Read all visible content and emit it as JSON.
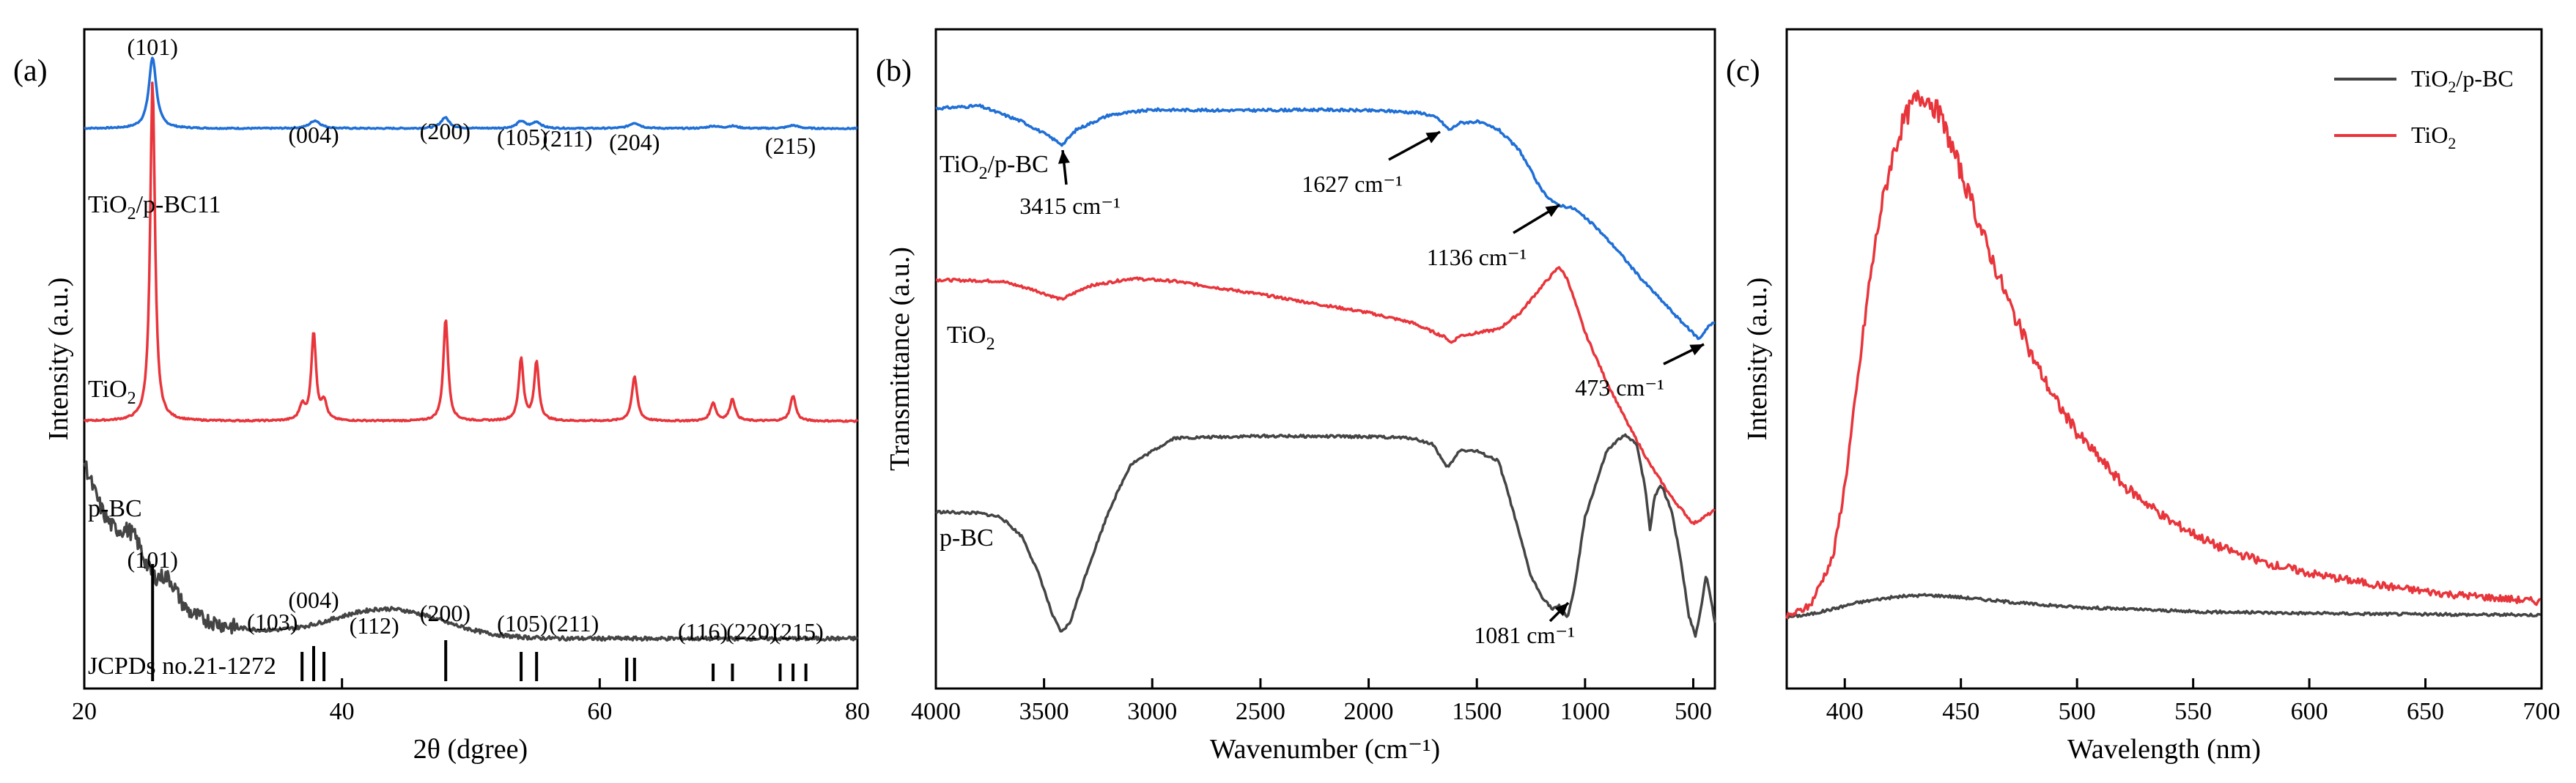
{
  "figure": {
    "panels": [
      "(a)",
      "(b)",
      "(c)"
    ]
  },
  "chart_data": [
    {
      "panel": "(a)",
      "type": "line",
      "title": "",
      "xlabel": "2θ (dgree)",
      "ylabel": "Intensity (a.u.)",
      "xlim": [
        20,
        80
      ],
      "xticks": [
        20,
        40,
        60,
        80
      ],
      "series": [
        {
          "name": "TiO2/p-BC11",
          "label": "TiO",
          "label_sub": "2",
          "label_tail": "/p-BC11",
          "color": "#1f6fd6",
          "baseline": 0.3,
          "noise": 0.004,
          "peaks": [
            [
              25.3,
              0.45,
              0.35
            ],
            [
              37.9,
              0.05,
              0.5
            ],
            [
              48.0,
              0.07,
              0.4
            ],
            [
              53.9,
              0.045,
              0.4
            ],
            [
              55.1,
              0.04,
              0.4
            ],
            [
              62.7,
              0.035,
              0.5
            ],
            [
              68.8,
              0.015,
              0.5
            ],
            [
              70.3,
              0.015,
              0.5
            ],
            [
              75.0,
              0.02,
              0.5
            ]
          ]
        },
        {
          "name": "TiO2",
          "label": "TiO",
          "label_sub": "2",
          "label_tail": "",
          "color": "#e8353b",
          "baseline": 0.0,
          "noise": 0.002,
          "peaks": [
            [
              25.3,
              0.93,
              0.22
            ],
            [
              36.9,
              0.04,
              0.25
            ],
            [
              37.8,
              0.24,
              0.22
            ],
            [
              38.6,
              0.05,
              0.25
            ],
            [
              48.05,
              0.28,
              0.22
            ],
            [
              53.9,
              0.17,
              0.22
            ],
            [
              55.1,
              0.16,
              0.22
            ],
            [
              62.7,
              0.12,
              0.25
            ],
            [
              68.8,
              0.05,
              0.25
            ],
            [
              70.3,
              0.06,
              0.25
            ],
            [
              75.0,
              0.07,
              0.25
            ]
          ]
        },
        {
          "name": "p-BC",
          "label": "p-BC",
          "label_sub": "",
          "label_tail": "",
          "color": "#444444",
          "baseline": 0.0,
          "noise": 0.01,
          "peaks": []
        }
      ],
      "peak_labels": [
        {
          "x": 25.3,
          "text": "(101)"
        },
        {
          "x": 37.8,
          "text": "(004)"
        },
        {
          "x": 48.0,
          "text": "(200)"
        },
        {
          "x": 54.0,
          "text": "(105)"
        },
        {
          "x": 57.5,
          "text": "(211)"
        },
        {
          "x": 62.7,
          "text": "(204)"
        },
        {
          "x": 74.8,
          "text": "(215)"
        }
      ],
      "reference": {
        "label": "JCPDs no.21-1272",
        "lines": [
          [
            25.3,
            1.0
          ],
          [
            36.9,
            0.25
          ],
          [
            37.8,
            0.3
          ],
          [
            38.6,
            0.25
          ],
          [
            48.05,
            0.35
          ],
          [
            53.9,
            0.25
          ],
          [
            55.1,
            0.25
          ],
          [
            62.1,
            0.2
          ],
          [
            62.7,
            0.2
          ],
          [
            68.8,
            0.15
          ],
          [
            70.3,
            0.15
          ],
          [
            74.0,
            0.15
          ],
          [
            75.0,
            0.15
          ],
          [
            76.0,
            0.15
          ]
        ],
        "labels": [
          {
            "x": 25.3,
            "text": "(101)"
          },
          {
            "x": 34.6,
            "text": "(103)"
          },
          {
            "x": 37.8,
            "text": "(004)"
          },
          {
            "x": 42.5,
            "text": "(112)"
          },
          {
            "x": 48.0,
            "text": "(200)"
          },
          {
            "x": 54.0,
            "text": "(105)"
          },
          {
            "x": 58.0,
            "text": "(211)"
          },
          {
            "x": 68.0,
            "text": "(116)"
          },
          {
            "x": 71.8,
            "text": "(220)"
          },
          {
            "x": 75.4,
            "text": "(215)"
          }
        ]
      }
    },
    {
      "panel": "(b)",
      "type": "line",
      "title": "",
      "xlabel": "Wavenumber (cm⁻¹)",
      "ylabel": "Transmittance (a.u.)",
      "xlim": [
        4000,
        400
      ],
      "xticks": [
        4000,
        3500,
        3000,
        2500,
        2000,
        1500,
        1000,
        500
      ],
      "series": [
        {
          "name": "TiO2/p-BC",
          "label": "TiO",
          "label_sub": "2",
          "label_tail": "/p-BC",
          "color": "#1f6fd6",
          "x": [
            4000,
            3800,
            3600,
            3500,
            3415,
            3350,
            3200,
            3000,
            2600,
            2200,
            1900,
            1750,
            1680,
            1627,
            1580,
            1500,
            1400,
            1300,
            1200,
            1136,
            1050,
            950,
            850,
            750,
            650,
            550,
            473,
            430,
            400
          ],
          "y": [
            0.88,
            0.884,
            0.86,
            0.842,
            0.825,
            0.848,
            0.87,
            0.878,
            0.877,
            0.878,
            0.876,
            0.873,
            0.865,
            0.847,
            0.858,
            0.86,
            0.848,
            0.815,
            0.755,
            0.735,
            0.728,
            0.7,
            0.665,
            0.625,
            0.59,
            0.555,
            0.53,
            0.55,
            0.555
          ]
        },
        {
          "name": "TiO2",
          "label": "TiO",
          "label_sub": "2",
          "label_tail": "",
          "color": "#e8353b",
          "x": [
            4000,
            3700,
            3550,
            3420,
            3300,
            3100,
            2900,
            2500,
            2000,
            1800,
            1640,
            1620,
            1580,
            1400,
            1300,
            1200,
            1120,
            1080,
            1000,
            900,
            800,
            700,
            600,
            500,
            450,
            400
          ],
          "y": [
            0.62,
            0.618,
            0.605,
            0.59,
            0.61,
            0.622,
            0.618,
            0.598,
            0.57,
            0.555,
            0.532,
            0.524,
            0.535,
            0.545,
            0.57,
            0.61,
            0.64,
            0.62,
            0.54,
            0.465,
            0.4,
            0.34,
            0.29,
            0.25,
            0.26,
            0.27
          ]
        },
        {
          "name": "p-BC",
          "label": "p-BC",
          "label_sub": "",
          "label_tail": "",
          "color": "#444444",
          "x": [
            4000,
            3800,
            3700,
            3600,
            3520,
            3460,
            3420,
            3380,
            3300,
            3200,
            3100,
            2900,
            2500,
            2000,
            1800,
            1700,
            1640,
            1610,
            1580,
            1500,
            1400,
            1350,
            1300,
            1250,
            1200,
            1150,
            1120,
            1081,
            1050,
            1000,
            900,
            820,
            760,
            720,
            700,
            680,
            650,
            600,
            560,
            520,
            490,
            470,
            440,
            400
          ],
          "y": [
            0.268,
            0.266,
            0.26,
            0.23,
            0.17,
            0.11,
            0.085,
            0.1,
            0.18,
            0.27,
            0.34,
            0.38,
            0.383,
            0.382,
            0.38,
            0.37,
            0.335,
            0.345,
            0.362,
            0.36,
            0.345,
            0.29,
            0.23,
            0.17,
            0.14,
            0.12,
            0.125,
            0.108,
            0.15,
            0.26,
            0.36,
            0.385,
            0.37,
            0.3,
            0.24,
            0.29,
            0.31,
            0.27,
            0.2,
            0.11,
            0.08,
            0.11,
            0.175,
            0.1
          ]
        }
      ],
      "annotations": [
        {
          "text": "3415 cm⁻¹",
          "x": 3415
        },
        {
          "text": "1627 cm⁻¹",
          "x": 1627
        },
        {
          "text": "1136 cm⁻¹",
          "x": 1136
        },
        {
          "text": "473 cm⁻¹",
          "x": 473
        },
        {
          "text": "1081 cm⁻¹",
          "x": 1081
        }
      ]
    },
    {
      "panel": "(c)",
      "type": "line",
      "title": "",
      "xlabel": "Wavelength (nm)",
      "ylabel": "Intensity (a.u.)",
      "xlim": [
        375,
        700
      ],
      "xticks": [
        400,
        450,
        500,
        550,
        600,
        650,
        700
      ],
      "legend_position": "top-right",
      "series": [
        {
          "name": "TiO2/p-BC",
          "label": "TiO",
          "label_sub": "2",
          "label_tail": "/p-BC",
          "color": "#444444",
          "x": [
            375,
            385,
            395,
            405,
            415,
            425,
            435,
            445,
            460,
            480,
            500,
            550,
            600,
            650,
            700
          ],
          "y": [
            0.01,
            0.015,
            0.025,
            0.036,
            0.043,
            0.048,
            0.05,
            0.048,
            0.042,
            0.034,
            0.028,
            0.02,
            0.017,
            0.015,
            0.014
          ]
        },
        {
          "name": "TiO2",
          "label": "TiO",
          "label_sub": "2",
          "label_tail": "",
          "color": "#e8353b",
          "x": [
            375,
            385,
            395,
            400,
            405,
            410,
            415,
            420,
            425,
            430,
            435,
            440,
            445,
            450,
            460,
            470,
            480,
            490,
            500,
            520,
            540,
            560,
            580,
            600,
            620,
            640,
            660,
            680,
            700
          ],
          "y": [
            0.01,
            0.03,
            0.12,
            0.25,
            0.42,
            0.6,
            0.74,
            0.84,
            0.91,
            0.95,
            0.96,
            0.93,
            0.88,
            0.82,
            0.7,
            0.59,
            0.49,
            0.41,
            0.345,
            0.25,
            0.185,
            0.14,
            0.11,
            0.09,
            0.075,
            0.062,
            0.052,
            0.045,
            0.038
          ]
        }
      ]
    }
  ]
}
